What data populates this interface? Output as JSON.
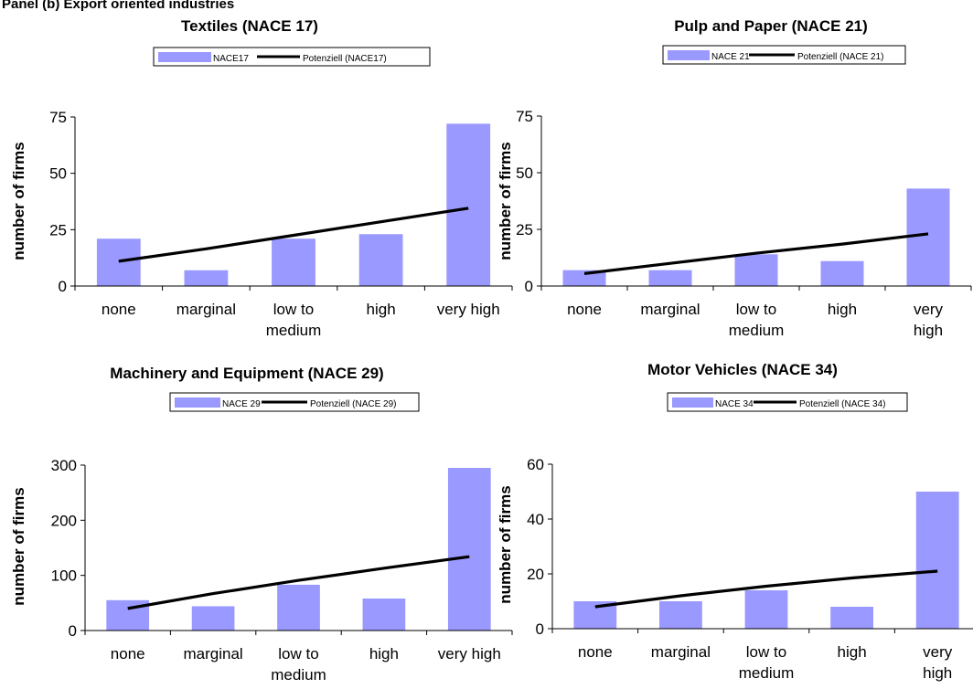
{
  "panel_heading": "Panel (b) Export oriented industries",
  "colors": {
    "bar": "#9999ff",
    "trend": "#000000",
    "axis": "#000000"
  },
  "chart_data": [
    {
      "type": "bar",
      "title": "Textiles (NACE 17)",
      "ylabel": "number of firms",
      "xlabel": "",
      "categories": [
        [
          "none"
        ],
        [
          "marginal"
        ],
        [
          "low to",
          "medium"
        ],
        [
          "high"
        ],
        [
          "very high"
        ]
      ],
      "series": [
        {
          "name": "NACE17",
          "type": "bar",
          "values": [
            21,
            7,
            21,
            23,
            72
          ]
        },
        {
          "name": "Potenziell (NACE17)",
          "type": "trendline",
          "values": [
            11,
            16.5,
            22.5,
            28.5,
            34.5
          ]
        }
      ],
      "ylim": [
        0,
        75
      ],
      "yticks": [
        0,
        25,
        50,
        75
      ],
      "grid": false,
      "legend": "top"
    },
    {
      "type": "bar",
      "title": "Pulp and Paper (NACE 21)",
      "ylabel": "number of firms",
      "xlabel": "",
      "categories": [
        [
          "none"
        ],
        [
          "marginal"
        ],
        [
          "low to",
          "medium"
        ],
        [
          "high"
        ],
        [
          "very",
          "high"
        ]
      ],
      "series": [
        {
          "name": "NACE 21",
          "type": "bar",
          "values": [
            7,
            7,
            14,
            11,
            43
          ]
        },
        {
          "name": "Potenziell (NACE 21)",
          "type": "trendline",
          "values": [
            5.5,
            10,
            14.5,
            18.5,
            23
          ]
        }
      ],
      "ylim": [
        0,
        75
      ],
      "yticks": [
        0,
        25,
        50,
        75
      ],
      "grid": false,
      "legend": "top"
    },
    {
      "type": "bar",
      "title": "Machinery and Equipment (NACE 29)",
      "ylabel": "number of firms",
      "xlabel": "",
      "categories": [
        [
          "none"
        ],
        [
          "marginal"
        ],
        [
          "low to",
          "medium"
        ],
        [
          "high"
        ],
        [
          "very high"
        ]
      ],
      "series": [
        {
          "name": "NACE 29",
          "type": "bar",
          "values": [
            55,
            44,
            83,
            58,
            295
          ]
        },
        {
          "name": "Potenziell (NACE 29)",
          "type": "trendline",
          "values": [
            40,
            67,
            91,
            113,
            134
          ]
        }
      ],
      "ylim": [
        0,
        300
      ],
      "yticks": [
        0,
        100,
        200,
        300
      ],
      "grid": false,
      "legend": "top"
    },
    {
      "type": "bar",
      "title": "Motor Vehicles (NACE 34)",
      "ylabel": "number of firms",
      "xlabel": "",
      "categories": [
        [
          "none"
        ],
        [
          "marginal"
        ],
        [
          "low to",
          "medium"
        ],
        [
          "high"
        ],
        [
          "very",
          "high"
        ]
      ],
      "series": [
        {
          "name": "NACE 34",
          "type": "bar",
          "values": [
            10,
            10,
            14,
            8,
            50
          ]
        },
        {
          "name": "Potenziell (NACE 34)",
          "type": "trendline",
          "values": [
            8,
            12,
            15.5,
            18.5,
            21
          ]
        }
      ],
      "ylim": [
        0,
        60
      ],
      "yticks": [
        0,
        20,
        40,
        60
      ],
      "grid": false,
      "legend": "top"
    }
  ]
}
